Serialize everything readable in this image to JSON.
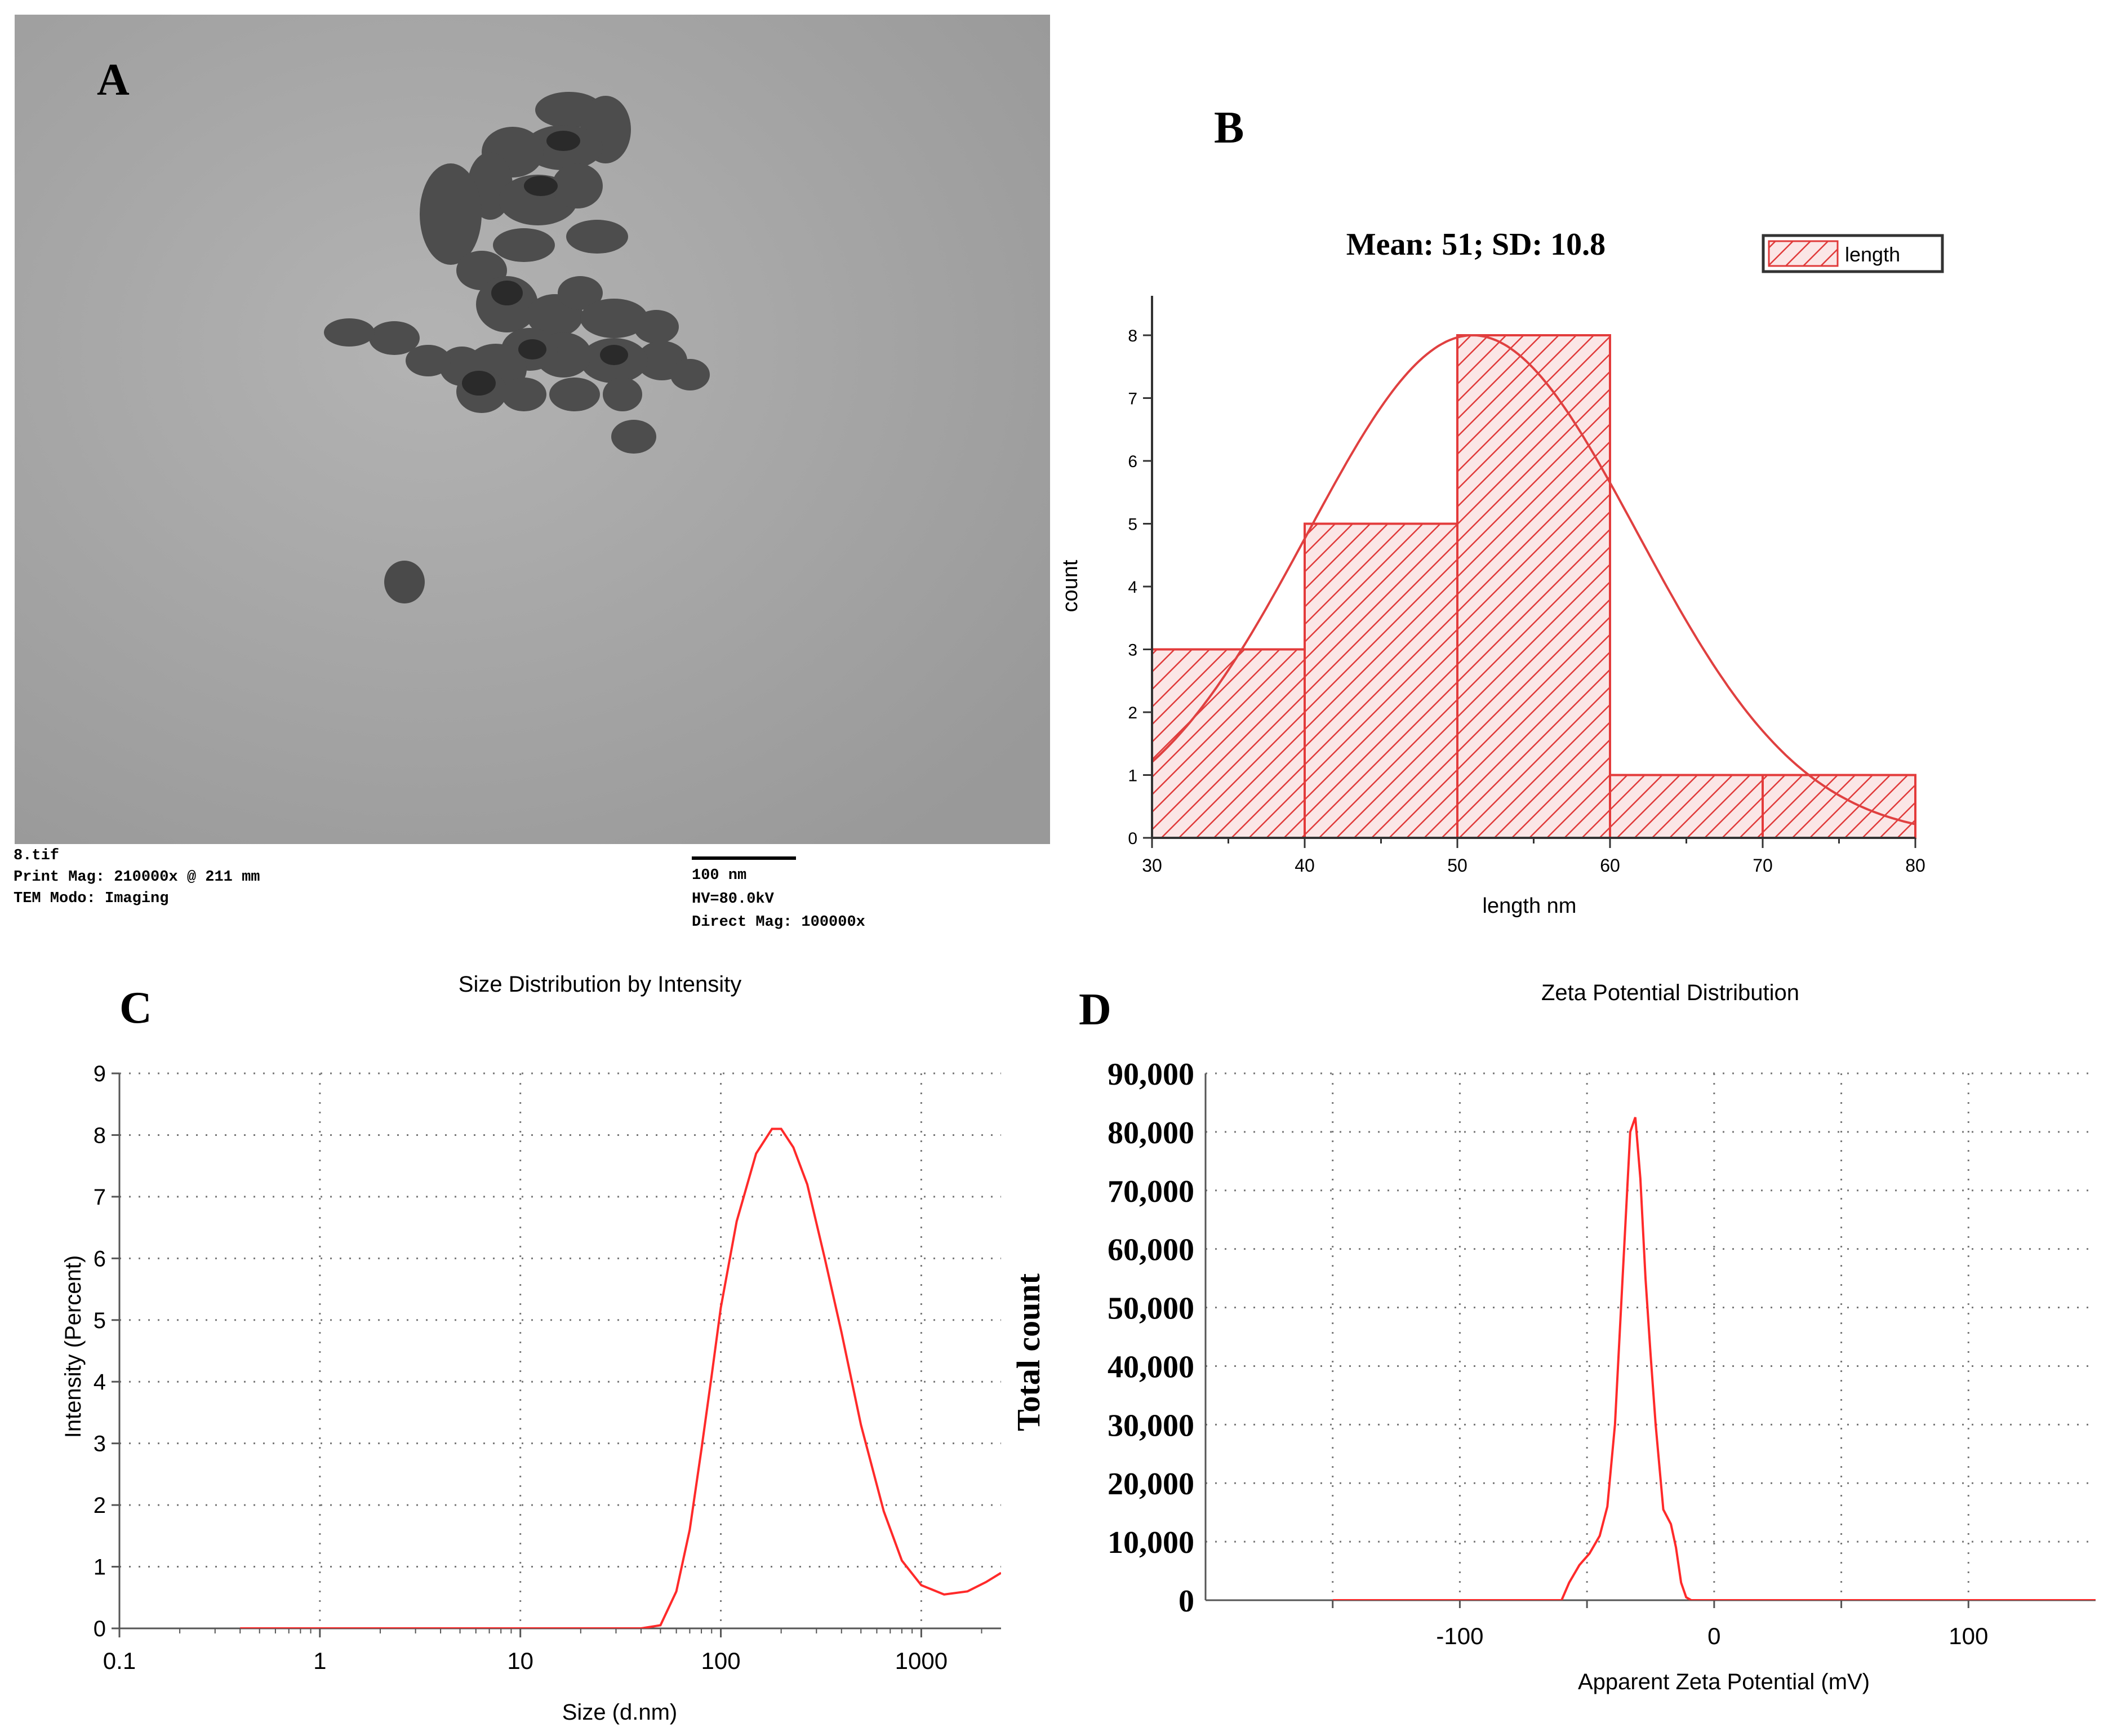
{
  "colors": {
    "curve": "#ff2a2a",
    "hist_stroke": "#e33b3b",
    "hist_fill": "#f8d2d2",
    "tem_bg": "#a6a6a6",
    "particle": "#4b4b4b"
  },
  "panels": {
    "A": {
      "letter": "A",
      "meta_left": [
        "8.tif",
        "Print Mag: 210000x @ 211 mm",
        "TEM Modo: Imaging"
      ],
      "scale_bar": "100 nm",
      "meta_right": [
        "HV=80.0kV",
        "Direct Mag: 100000x"
      ]
    },
    "B": {
      "letter": "B"
    },
    "C": {
      "letter": "C"
    },
    "D": {
      "letter": "D"
    }
  },
  "chart_data": [
    {
      "panel": "B",
      "type": "bar",
      "title": "Mean: 51; SD: 10.8",
      "xlabel": "length nm",
      "ylabel": "count",
      "legend": [
        "length"
      ],
      "legend_position": "top-right",
      "bins": [
        [
          30,
          40
        ],
        [
          40,
          50
        ],
        [
          50,
          60
        ],
        [
          60,
          70
        ],
        [
          70,
          80
        ]
      ],
      "values": [
        3,
        5,
        8,
        1,
        1
      ],
      "fit": {
        "kind": "normal",
        "mean": 51,
        "sd": 10.8,
        "peak": 8
      },
      "xlim": [
        30,
        80
      ],
      "ylim": [
        0,
        8
      ],
      "xticks": [
        30,
        40,
        50,
        60,
        70,
        80
      ],
      "yticks": [
        0,
        1,
        2,
        3,
        4,
        5,
        6,
        7,
        8
      ]
    },
    {
      "panel": "C",
      "type": "line",
      "title": "Size Distribution by Intensity",
      "xlabel": "Size (d.nm)",
      "ylabel": "Intensity (Percent)",
      "xscale": "log",
      "xlim": [
        0.1,
        2500
      ],
      "ylim": [
        0,
        9
      ],
      "xticks": [
        "0.1",
        "1",
        "10",
        "100",
        "1000"
      ],
      "yticks": [
        "0",
        "1",
        "2",
        "3",
        "4",
        "5",
        "6",
        "7",
        "8",
        "9"
      ],
      "grid": true,
      "x": [
        0.4,
        1,
        10,
        40,
        50,
        60,
        70,
        80,
        90,
        100,
        120,
        150,
        180,
        200,
        230,
        270,
        330,
        400,
        500,
        650,
        800,
        1000,
        1300,
        1700,
        2100,
        2500
      ],
      "y": [
        0,
        0,
        0,
        0,
        0.05,
        0.6,
        1.6,
        2.9,
        4.1,
        5.2,
        6.6,
        7.7,
        8.1,
        8.1,
        7.8,
        7.2,
        6.0,
        4.8,
        3.3,
        1.9,
        1.1,
        0.7,
        0.55,
        0.6,
        0.75,
        0.9
      ]
    },
    {
      "panel": "D",
      "type": "line",
      "title": "Zeta Potential Distribution",
      "xlabel": "Apparent Zeta Potential (mV)",
      "ylabel": "Total count",
      "xlim": [
        -200,
        150
      ],
      "ylim": [
        0,
        90000
      ],
      "xticks": [
        "-100",
        "0",
        "100"
      ],
      "xtick_values": [
        -100,
        0,
        100
      ],
      "yticks": [
        "0",
        "10,000",
        "20,000",
        "30,000",
        "40,000",
        "50,000",
        "60,000",
        "70,000",
        "80,000",
        "90,000"
      ],
      "ytick_values": [
        0,
        10000,
        20000,
        30000,
        40000,
        50000,
        60000,
        70000,
        80000,
        90000
      ],
      "grid": true,
      "x": [
        -150,
        -60,
        -57,
        -53,
        -49,
        -45,
        -42,
        -39,
        -36,
        -33,
        -31,
        -29,
        -27,
        -25,
        -23,
        -20,
        -17,
        -15,
        -13,
        -11,
        -9,
        -7,
        150
      ],
      "y": [
        0,
        0,
        3000,
        6000,
        8000,
        11000,
        16000,
        30000,
        55000,
        80000,
        82500,
        72000,
        55000,
        42000,
        30000,
        15500,
        13000,
        9000,
        3000,
        500,
        0,
        0,
        0
      ]
    }
  ]
}
